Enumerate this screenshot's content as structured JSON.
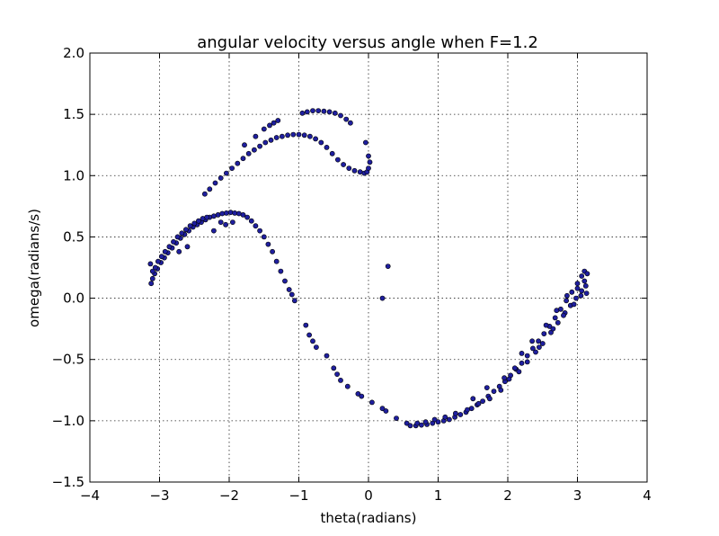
{
  "chart_data": {
    "type": "scatter",
    "title": "angular velocity versus angle when F=1.2",
    "xlabel": "theta(radians)",
    "ylabel": "omega(radians/s)",
    "xlim": [
      -4,
      4
    ],
    "ylim": [
      -1.5,
      2.0
    ],
    "xticks": [
      -4,
      -3,
      -2,
      -1,
      0,
      1,
      2,
      3,
      4
    ],
    "xtick_labels": [
      "−4",
      "−3",
      "−2",
      "−1",
      "0",
      "1",
      "2",
      "3",
      "4"
    ],
    "yticks": [
      -1.5,
      -1.0,
      -0.5,
      0.0,
      0.5,
      1.0,
      1.5,
      2.0
    ],
    "ytick_labels": [
      "−1.5",
      "−1.0",
      "−0.5",
      "0.0",
      "0.5",
      "1.0",
      "1.5",
      "2.0"
    ],
    "grid": true,
    "marker_color": "#1f1f9f",
    "series": [
      {
        "values": [
          [
            -3.12,
            0.12
          ],
          [
            -3.1,
            0.16
          ],
          [
            -3.07,
            0.2
          ],
          [
            -3.03,
            0.24
          ],
          [
            -2.98,
            0.29
          ],
          [
            -2.93,
            0.33
          ],
          [
            -2.88,
            0.37
          ],
          [
            -2.82,
            0.41
          ],
          [
            -2.76,
            0.45
          ],
          [
            -2.7,
            0.49
          ],
          [
            -2.64,
            0.52
          ],
          [
            -2.58,
            0.55
          ],
          [
            -2.52,
            0.58
          ],
          [
            -2.46,
            0.6
          ],
          [
            -2.4,
            0.62
          ],
          [
            -2.34,
            0.64
          ],
          [
            -2.28,
            0.66
          ],
          [
            -2.22,
            0.67
          ],
          [
            -2.16,
            0.68
          ],
          [
            -2.1,
            0.69
          ],
          [
            -2.04,
            0.695
          ],
          [
            -1.98,
            0.7
          ],
          [
            -1.92,
            0.695
          ],
          [
            -1.86,
            0.69
          ],
          [
            -1.8,
            0.68
          ],
          [
            -1.74,
            0.66
          ],
          [
            -1.68,
            0.63
          ],
          [
            -1.62,
            0.59
          ],
          [
            -1.56,
            0.55
          ],
          [
            -1.5,
            0.5
          ],
          [
            -1.44,
            0.44
          ],
          [
            -1.38,
            0.38
          ],
          [
            -1.32,
            0.3
          ],
          [
            -1.26,
            0.22
          ],
          [
            -1.2,
            0.14
          ],
          [
            -1.14,
            0.07
          ],
          [
            -1.1,
            0.03
          ],
          [
            -1.06,
            -0.02
          ],
          [
            -0.9,
            -0.22
          ],
          [
            -0.85,
            -0.3
          ],
          [
            -0.8,
            -0.35
          ],
          [
            -0.75,
            -0.4
          ],
          [
            -0.6,
            -0.47
          ],
          [
            -0.5,
            -0.57
          ],
          [
            -0.45,
            -0.62
          ],
          [
            -0.4,
            -0.67
          ],
          [
            -0.3,
            -0.72
          ],
          [
            -0.15,
            -0.78
          ],
          [
            -0.1,
            -0.8
          ],
          [
            0.05,
            -0.85
          ],
          [
            0.2,
            -0.9
          ],
          [
            0.25,
            -0.92
          ],
          [
            0.4,
            -0.98
          ],
          [
            0.55,
            -1.02
          ],
          [
            -3.13,
            0.28
          ],
          [
            -3.1,
            0.22
          ],
          [
            -3.06,
            0.25
          ],
          [
            -3.02,
            0.3
          ],
          [
            -2.97,
            0.34
          ],
          [
            -2.92,
            0.38
          ],
          [
            -2.86,
            0.42
          ],
          [
            -2.8,
            0.46
          ],
          [
            -2.74,
            0.5
          ],
          [
            -2.68,
            0.53
          ],
          [
            -2.62,
            0.56
          ],
          [
            -2.56,
            0.59
          ],
          [
            -2.5,
            0.61
          ],
          [
            -2.44,
            0.63
          ],
          [
            -2.38,
            0.65
          ],
          [
            -2.32,
            0.66
          ],
          [
            -2.35,
            0.85
          ],
          [
            -2.28,
            0.89
          ],
          [
            -2.2,
            0.94
          ],
          [
            -2.12,
            0.98
          ],
          [
            -2.04,
            1.02
          ],
          [
            -1.96,
            1.06
          ],
          [
            -1.88,
            1.1
          ],
          [
            -1.8,
            1.14
          ],
          [
            -1.72,
            1.18
          ],
          [
            -1.64,
            1.21
          ],
          [
            -1.56,
            1.24
          ],
          [
            -1.48,
            1.27
          ],
          [
            -1.4,
            1.29
          ],
          [
            -1.32,
            1.31
          ],
          [
            -1.24,
            1.32
          ],
          [
            -1.16,
            1.33
          ],
          [
            -1.08,
            1.335
          ],
          [
            -1.0,
            1.335
          ],
          [
            -0.92,
            1.33
          ],
          [
            -0.84,
            1.32
          ],
          [
            -0.76,
            1.3
          ],
          [
            -0.68,
            1.27
          ],
          [
            -0.6,
            1.23
          ],
          [
            -0.52,
            1.18
          ],
          [
            -0.44,
            1.13
          ],
          [
            -0.36,
            1.09
          ],
          [
            -0.28,
            1.06
          ],
          [
            -0.2,
            1.04
          ],
          [
            -0.12,
            1.03
          ],
          [
            -0.06,
            1.02
          ],
          [
            -0.02,
            1.03
          ],
          [
            0.0,
            1.06
          ],
          [
            0.02,
            1.11
          ],
          [
            0.0,
            1.16
          ],
          [
            -0.04,
            1.27
          ],
          [
            -1.78,
            1.25
          ],
          [
            -1.62,
            1.32
          ],
          [
            -1.5,
            1.38
          ],
          [
            -1.42,
            1.41
          ],
          [
            -1.36,
            1.43
          ],
          [
            -1.3,
            1.45
          ],
          [
            -0.95,
            1.51
          ],
          [
            -0.88,
            1.52
          ],
          [
            -0.8,
            1.53
          ],
          [
            -0.72,
            1.53
          ],
          [
            -0.64,
            1.525
          ],
          [
            -0.56,
            1.52
          ],
          [
            -0.48,
            1.51
          ],
          [
            -0.4,
            1.49
          ],
          [
            -0.32,
            1.46
          ],
          [
            -0.26,
            1.43
          ],
          [
            -2.05,
            0.6
          ],
          [
            -1.95,
            0.62
          ],
          [
            -2.12,
            0.62
          ],
          [
            -2.22,
            0.55
          ],
          [
            -2.72,
            0.38
          ],
          [
            -2.6,
            0.42
          ],
          [
            0.2,
            0.0
          ],
          [
            0.28,
            0.26
          ],
          [
            0.6,
            -1.04
          ],
          [
            0.68,
            -1.04
          ],
          [
            0.76,
            -1.035
          ],
          [
            0.84,
            -1.03
          ],
          [
            0.92,
            -1.02
          ],
          [
            1.0,
            -1.01
          ],
          [
            1.08,
            -1.0
          ],
          [
            1.16,
            -0.99
          ],
          [
            1.24,
            -0.97
          ],
          [
            1.32,
            -0.95
          ],
          [
            1.4,
            -0.93
          ],
          [
            1.48,
            -0.9
          ],
          [
            1.56,
            -0.87
          ],
          [
            1.64,
            -0.84
          ],
          [
            1.72,
            -0.8
          ],
          [
            1.8,
            -0.76
          ],
          [
            1.88,
            -0.72
          ],
          [
            1.96,
            -0.68
          ],
          [
            2.04,
            -0.63
          ],
          [
            2.12,
            -0.58
          ],
          [
            2.2,
            -0.53
          ],
          [
            2.28,
            -0.47
          ],
          [
            2.36,
            -0.41
          ],
          [
            2.44,
            -0.35
          ],
          [
            2.52,
            -0.29
          ],
          [
            2.6,
            -0.23
          ],
          [
            2.68,
            -0.16
          ],
          [
            2.76,
            -0.09
          ],
          [
            2.84,
            -0.02
          ],
          [
            2.92,
            0.05
          ],
          [
            3.0,
            0.12
          ],
          [
            3.06,
            0.18
          ],
          [
            3.1,
            0.22
          ],
          [
            0.7,
            -1.02
          ],
          [
            0.82,
            -1.01
          ],
          [
            0.95,
            -0.99
          ],
          [
            1.1,
            -0.97
          ],
          [
            1.25,
            -0.94
          ],
          [
            1.42,
            -0.91
          ],
          [
            1.58,
            -0.86
          ],
          [
            1.74,
            -0.82
          ],
          [
            1.9,
            -0.75
          ],
          [
            2.02,
            -0.66
          ],
          [
            2.16,
            -0.6
          ],
          [
            2.28,
            -0.52
          ],
          [
            2.4,
            -0.44
          ],
          [
            2.5,
            -0.37
          ],
          [
            2.62,
            -0.28
          ],
          [
            2.72,
            -0.2
          ],
          [
            2.82,
            -0.12
          ],
          [
            2.9,
            -0.06
          ],
          [
            2.98,
            0.0
          ],
          [
            3.06,
            0.06
          ],
          [
            3.12,
            0.1
          ],
          [
            2.2,
            -0.45
          ],
          [
            2.35,
            -0.35
          ],
          [
            2.55,
            -0.22
          ],
          [
            2.7,
            -0.1
          ],
          [
            2.85,
            0.02
          ],
          [
            3.0,
            0.08
          ],
          [
            3.1,
            0.14
          ],
          [
            3.14,
            0.2
          ],
          [
            1.5,
            -0.82
          ],
          [
            1.7,
            -0.73
          ],
          [
            1.95,
            -0.65
          ],
          [
            2.1,
            -0.57
          ],
          [
            2.45,
            -0.4
          ],
          [
            2.65,
            -0.25
          ],
          [
            2.8,
            -0.14
          ],
          [
            2.95,
            -0.05
          ],
          [
            3.05,
            0.02
          ],
          [
            3.13,
            0.04
          ]
        ]
      }
    ]
  }
}
